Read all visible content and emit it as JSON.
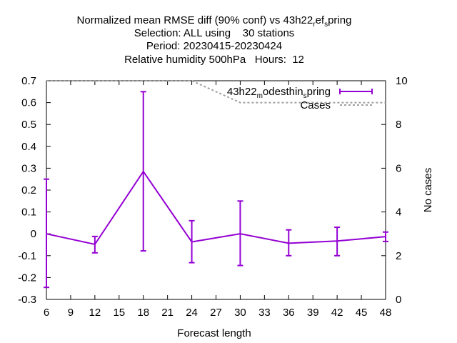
{
  "chart_data": {
    "type": "line",
    "title_lines": [
      "Normalized mean RMSE diff (90% conf) vs 43h22_ref_spring",
      "Selection: ALL using    30 stations",
      "Period: 20230415-20230424",
      "Relative humidity 500hPa   Hours:  12"
    ],
    "title_main_prefix": "Normalized mean RMSE diff (90% conf) vs 43h22",
    "title_main_sub1": "r",
    "title_main_mid": "ef",
    "title_main_sub2": "s",
    "title_main_suffix": "pring",
    "xlabel": "Forecast length",
    "ylabel": "",
    "y2label": "No cases",
    "xlim": [
      6,
      48
    ],
    "ylim": [
      -0.3,
      0.7
    ],
    "y2lim": [
      0,
      10
    ],
    "xticks": [
      6,
      9,
      12,
      15,
      18,
      21,
      24,
      27,
      30,
      33,
      36,
      39,
      42,
      45,
      48
    ],
    "yticks": [
      -0.3,
      -0.2,
      -0.1,
      0,
      0.1,
      0.2,
      0.3,
      0.4,
      0.5,
      0.6,
      0.7
    ],
    "y2ticks": [
      0,
      2,
      4,
      6,
      8,
      10
    ],
    "legend_position": "top-right",
    "series": [
      {
        "name": "43h22_modesthin_spring",
        "name_prefix": "43h22",
        "name_sub1": "m",
        "name_mid": "odesthin",
        "name_sub2": "s",
        "name_suffix": "pring",
        "color": "#9400d3",
        "axis": "y",
        "x": [
          6,
          12,
          18,
          24,
          30,
          36,
          42,
          48
        ],
        "y": [
          0.0,
          -0.048,
          0.285,
          -0.037,
          0.0,
          -0.043,
          -0.033,
          -0.013
        ],
        "err_low": [
          -0.245,
          -0.087,
          -0.078,
          -0.132,
          -0.145,
          -0.1,
          -0.1,
          -0.035
        ],
        "err_high": [
          0.25,
          -0.012,
          0.65,
          0.06,
          0.15,
          0.018,
          0.03,
          0.008
        ]
      },
      {
        "name": "Cases",
        "color": "#a0a0a0",
        "axis": "y2",
        "x": [
          6,
          12,
          18,
          24,
          30,
          36,
          42,
          48
        ],
        "y": [
          10,
          10,
          10,
          10,
          9,
          9,
          9,
          9
        ]
      }
    ],
    "colors": {
      "axis": "#000000",
      "series1": "#9400d3",
      "cases": "#a0a0a0"
    }
  }
}
